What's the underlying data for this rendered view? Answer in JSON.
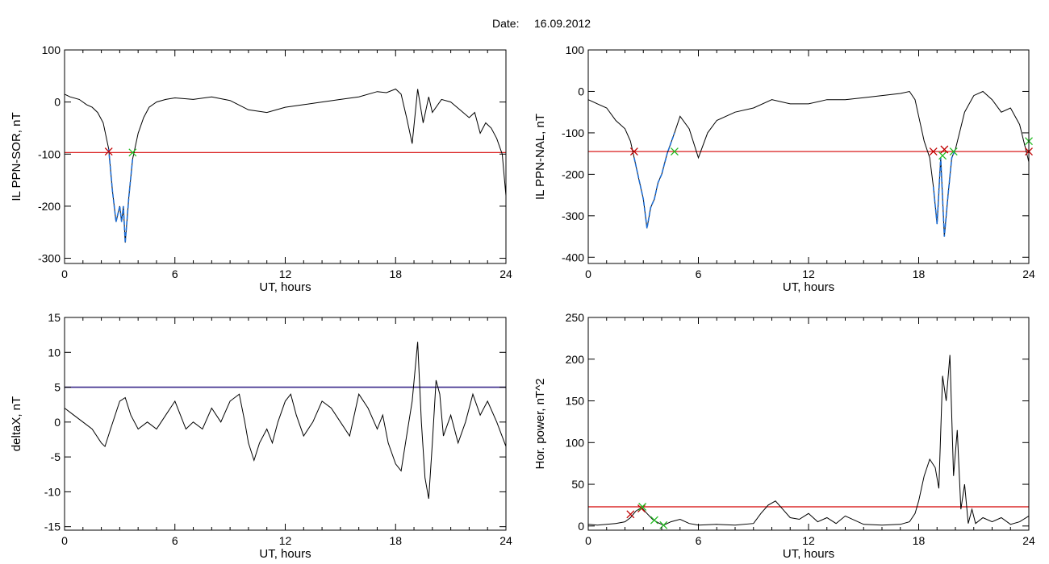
{
  "figure": {
    "title_prefix": "Date:",
    "date": "16.09.2012"
  },
  "colors": {
    "trace": "#000000",
    "threshold": "#d40000",
    "threshold_deltax": "#3a2a8a",
    "highlight": "#1f6fd6",
    "start_marker": "#c00000",
    "end_marker": "#22bb22"
  },
  "chart_data": [
    {
      "id": "il-sor",
      "type": "line",
      "xlabel": "UT, hours",
      "ylabel": "IL PPN-SOR, nT",
      "xlim": [
        0,
        24
      ],
      "ylim": [
        -310,
        100
      ],
      "xticks": [
        0,
        6,
        12,
        18,
        24
      ],
      "yticks": [
        100,
        0,
        -100,
        -200,
        -300
      ],
      "threshold": -97,
      "x": [
        0,
        0.3,
        0.8,
        1.2,
        1.5,
        1.8,
        2.1,
        2.4,
        2.6,
        2.8,
        3.0,
        3.1,
        3.2,
        3.3,
        3.5,
        3.7,
        4.0,
        4.3,
        4.6,
        5.0,
        5.5,
        6.0,
        7.0,
        8.0,
        9.0,
        10.0,
        11.0,
        12.0,
        13.0,
        14.0,
        15.0,
        16.0,
        17.0,
        17.5,
        18.0,
        18.3,
        18.6,
        18.9,
        19.2,
        19.5,
        19.8,
        20.0,
        20.5,
        21.0,
        21.5,
        22.0,
        22.3,
        22.6,
        22.9,
        23.2,
        23.5,
        23.8,
        24.0
      ],
      "y": [
        15,
        10,
        5,
        -5,
        -10,
        -20,
        -40,
        -90,
        -170,
        -230,
        -200,
        -230,
        -200,
        -270,
        -180,
        -110,
        -60,
        -30,
        -10,
        0,
        5,
        8,
        5,
        10,
        3,
        -15,
        -20,
        -10,
        -5,
        0,
        5,
        10,
        20,
        18,
        25,
        15,
        -30,
        -80,
        25,
        -40,
        10,
        -20,
        5,
        0,
        -15,
        -30,
        -20,
        -60,
        -40,
        -50,
        -70,
        -100,
        -180
      ],
      "highlights": [
        [
          2.4,
          3.7
        ]
      ],
      "events": [
        {
          "type": "start",
          "x": 2.4,
          "y": -95
        },
        {
          "type": "end",
          "x": 3.7,
          "y": -97
        }
      ]
    },
    {
      "id": "il-nal",
      "type": "line",
      "xlabel": "UT, hours",
      "ylabel": "IL PPN-NAL, nT",
      "xlim": [
        0,
        24
      ],
      "ylim": [
        -415,
        100
      ],
      "xticks": [
        0,
        6,
        12,
        18,
        24
      ],
      "yticks": [
        100,
        0,
        -100,
        -200,
        -300,
        -400
      ],
      "threshold": -145,
      "x": [
        0,
        0.5,
        1.0,
        1.5,
        2.0,
        2.3,
        2.5,
        2.8,
        3.0,
        3.2,
        3.4,
        3.6,
        3.8,
        4.0,
        4.3,
        4.7,
        5.0,
        5.5,
        6.0,
        6.5,
        7.0,
        8.0,
        9.0,
        10.0,
        11.0,
        12.0,
        13.0,
        14.0,
        15.0,
        16.0,
        17.0,
        17.5,
        17.8,
        18.0,
        18.3,
        18.6,
        18.8,
        19.0,
        19.2,
        19.4,
        19.6,
        19.8,
        20.0,
        20.5,
        21.0,
        21.5,
        22.0,
        22.5,
        23.0,
        23.5,
        24.0
      ],
      "y": [
        -20,
        -30,
        -40,
        -70,
        -90,
        -120,
        -160,
        -220,
        -260,
        -330,
        -280,
        -260,
        -220,
        -200,
        -150,
        -100,
        -60,
        -90,
        -160,
        -100,
        -70,
        -50,
        -40,
        -20,
        -30,
        -30,
        -20,
        -20,
        -15,
        -10,
        -5,
        0,
        -20,
        -60,
        -120,
        -160,
        -230,
        -320,
        -160,
        -350,
        -250,
        -160,
        -140,
        -50,
        -10,
        0,
        -20,
        -50,
        -40,
        -80,
        -170
      ],
      "highlights": [
        [
          2.5,
          4.7
        ],
        [
          18.8,
          20.0
        ],
        [
          23.8,
          24.0
        ]
      ],
      "events": [
        {
          "type": "start",
          "x": 2.5,
          "y": -145
        },
        {
          "type": "end",
          "x": 4.7,
          "y": -145
        },
        {
          "type": "start",
          "x": 18.8,
          "y": -145
        },
        {
          "type": "start",
          "x": 19.4,
          "y": -140
        },
        {
          "type": "end",
          "x": 19.3,
          "y": -155
        },
        {
          "type": "end",
          "x": 19.9,
          "y": -145
        },
        {
          "type": "end",
          "x": 24.0,
          "y": -120
        },
        {
          "type": "start",
          "x": 24.0,
          "y": -145
        }
      ]
    },
    {
      "id": "deltax",
      "type": "line",
      "xlabel": "UT, hours",
      "ylabel": "deltaX, nT",
      "xlim": [
        0,
        24
      ],
      "ylim": [
        -15.5,
        15
      ],
      "xticks": [
        0,
        6,
        12,
        18,
        24
      ],
      "yticks": [
        15,
        10,
        5,
        0,
        -5,
        -10,
        -15
      ],
      "threshold": 5,
      "x": [
        0,
        0.5,
        1.0,
        1.5,
        2.0,
        2.2,
        2.5,
        3.0,
        3.3,
        3.6,
        4.0,
        4.5,
        5.0,
        5.5,
        6.0,
        6.3,
        6.6,
        7.0,
        7.5,
        8.0,
        8.5,
        9.0,
        9.5,
        9.8,
        10.0,
        10.3,
        10.6,
        11.0,
        11.3,
        11.6,
        12.0,
        12.3,
        12.6,
        13.0,
        13.5,
        14.0,
        14.5,
        15.0,
        15.5,
        16.0,
        16.5,
        17.0,
        17.3,
        17.6,
        18.0,
        18.3,
        18.6,
        18.9,
        19.2,
        19.4,
        19.6,
        19.8,
        20.0,
        20.2,
        20.4,
        20.6,
        21.0,
        21.4,
        21.8,
        22.2,
        22.6,
        23.0,
        23.5,
        24.0
      ],
      "y": [
        2,
        1,
        0,
        -1,
        -3,
        -3.5,
        -1,
        3,
        3.5,
        1,
        -1,
        0,
        -1,
        1,
        3,
        1,
        -1,
        0,
        -1,
        2,
        0,
        3,
        4,
        0,
        -3,
        -5.5,
        -3,
        -1,
        -3,
        0,
        3,
        4,
        1,
        -2,
        0,
        3,
        2,
        0,
        -2,
        4,
        2,
        -1,
        1,
        -3,
        -6,
        -7,
        -2,
        3,
        11.5,
        0,
        -8,
        -11,
        -3,
        6,
        4,
        -2,
        1,
        -3,
        0,
        4,
        1,
        3,
        0,
        -3.5
      ],
      "highlights": [],
      "events": []
    },
    {
      "id": "hor-power",
      "type": "line",
      "xlabel": "UT, hours",
      "ylabel": "Hor. power, nT^2",
      "xlim": [
        0,
        24
      ],
      "ylim": [
        -5,
        250
      ],
      "xticks": [
        0,
        6,
        12,
        18,
        24
      ],
      "yticks": [
        250,
        200,
        150,
        100,
        50,
        0
      ],
      "threshold": 23,
      "x": [
        0,
        0.5,
        1.0,
        1.5,
        2.0,
        2.3,
        2.6,
        2.9,
        3.2,
        3.5,
        3.8,
        4.1,
        4.5,
        5.0,
        5.5,
        6.0,
        7.0,
        8.0,
        9.0,
        9.4,
        9.8,
        10.2,
        10.6,
        11.0,
        11.5,
        12.0,
        12.5,
        13.0,
        13.5,
        14.0,
        15.0,
        16.0,
        17.0,
        17.5,
        17.8,
        18.0,
        18.3,
        18.6,
        18.9,
        19.1,
        19.3,
        19.5,
        19.7,
        19.9,
        20.1,
        20.3,
        20.5,
        20.7,
        20.9,
        21.1,
        21.5,
        22.0,
        22.5,
        23.0,
        23.5,
        24.0
      ],
      "y": [
        2,
        1,
        2,
        3,
        5,
        10,
        18,
        22,
        15,
        8,
        4,
        1,
        5,
        8,
        3,
        1,
        2,
        1,
        3,
        15,
        25,
        30,
        20,
        10,
        8,
        15,
        5,
        10,
        3,
        12,
        2,
        1,
        2,
        5,
        15,
        30,
        60,
        80,
        70,
        45,
        180,
        150,
        205,
        60,
        115,
        20,
        50,
        3,
        20,
        3,
        10,
        5,
        10,
        2,
        5,
        12
      ],
      "highlights": [],
      "events": [
        {
          "type": "start",
          "x": 2.3,
          "y": 14
        },
        {
          "type": "start",
          "x": 2.9,
          "y": 21
        },
        {
          "type": "end",
          "x": 2.95,
          "y": 23
        },
        {
          "type": "end",
          "x": 3.6,
          "y": 7
        },
        {
          "type": "end",
          "x": 4.1,
          "y": 1
        }
      ]
    }
  ]
}
